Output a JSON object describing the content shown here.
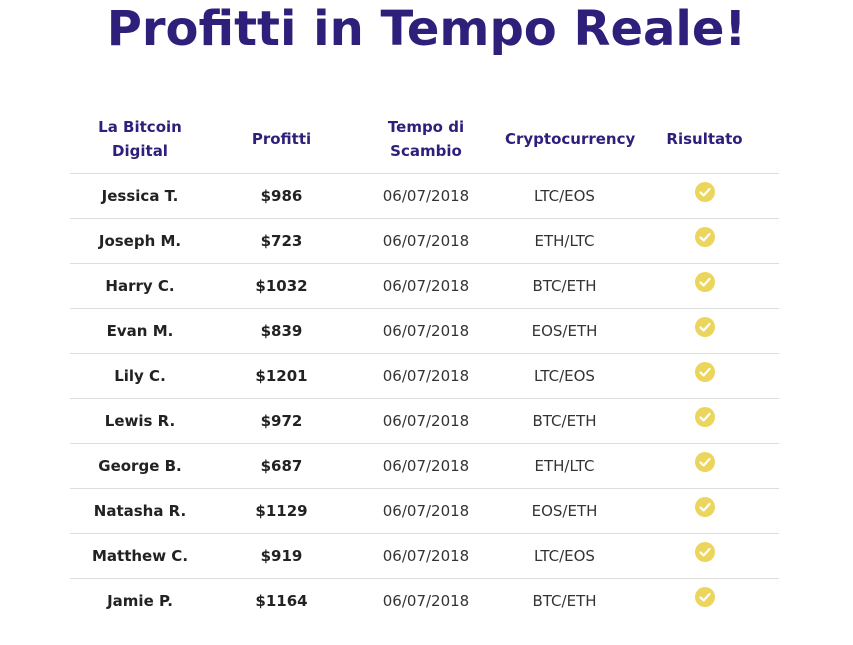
{
  "title": "Profitti in Tempo Reale!",
  "columns": [
    "La Bitcoin Digital",
    "Profitti",
    "Tempo di Scambio",
    "Cryptocurrency",
    "Risultato"
  ],
  "rows": [
    {
      "name": "Jessica T.",
      "profit": "$986",
      "date": "06/07/2018",
      "crypto": "LTC/EOS"
    },
    {
      "name": "Joseph M.",
      "profit": "$723",
      "date": "06/07/2018",
      "crypto": "ETH/LTC"
    },
    {
      "name": "Harry C.",
      "profit": "$1032",
      "date": "06/07/2018",
      "crypto": "BTC/ETH"
    },
    {
      "name": "Evan M.",
      "profit": "$839",
      "date": "06/07/2018",
      "crypto": "EOS/ETH"
    },
    {
      "name": "Lily C.",
      "profit": "$1201",
      "date": "06/07/2018",
      "crypto": "LTC/EOS"
    },
    {
      "name": "Lewis R.",
      "profit": "$972",
      "date": "06/07/2018",
      "crypto": "BTC/ETH"
    },
    {
      "name": "George B.",
      "profit": "$687",
      "date": "06/07/2018",
      "crypto": "ETH/LTC"
    },
    {
      "name": "Natasha R.",
      "profit": "$1129",
      "date": "06/07/2018",
      "crypto": "EOS/ETH"
    },
    {
      "name": "Matthew C.",
      "profit": "$919",
      "date": "06/07/2018",
      "crypto": "LTC/EOS"
    },
    {
      "name": "Jamie P.",
      "profit": "$1164",
      "date": "06/07/2018",
      "crypto": "BTC/ETH"
    }
  ],
  "result_icon": "check-circle-icon",
  "colors": {
    "heading": "#2e1f7a",
    "check": "#ecd55c",
    "divider": "#dddddd"
  }
}
